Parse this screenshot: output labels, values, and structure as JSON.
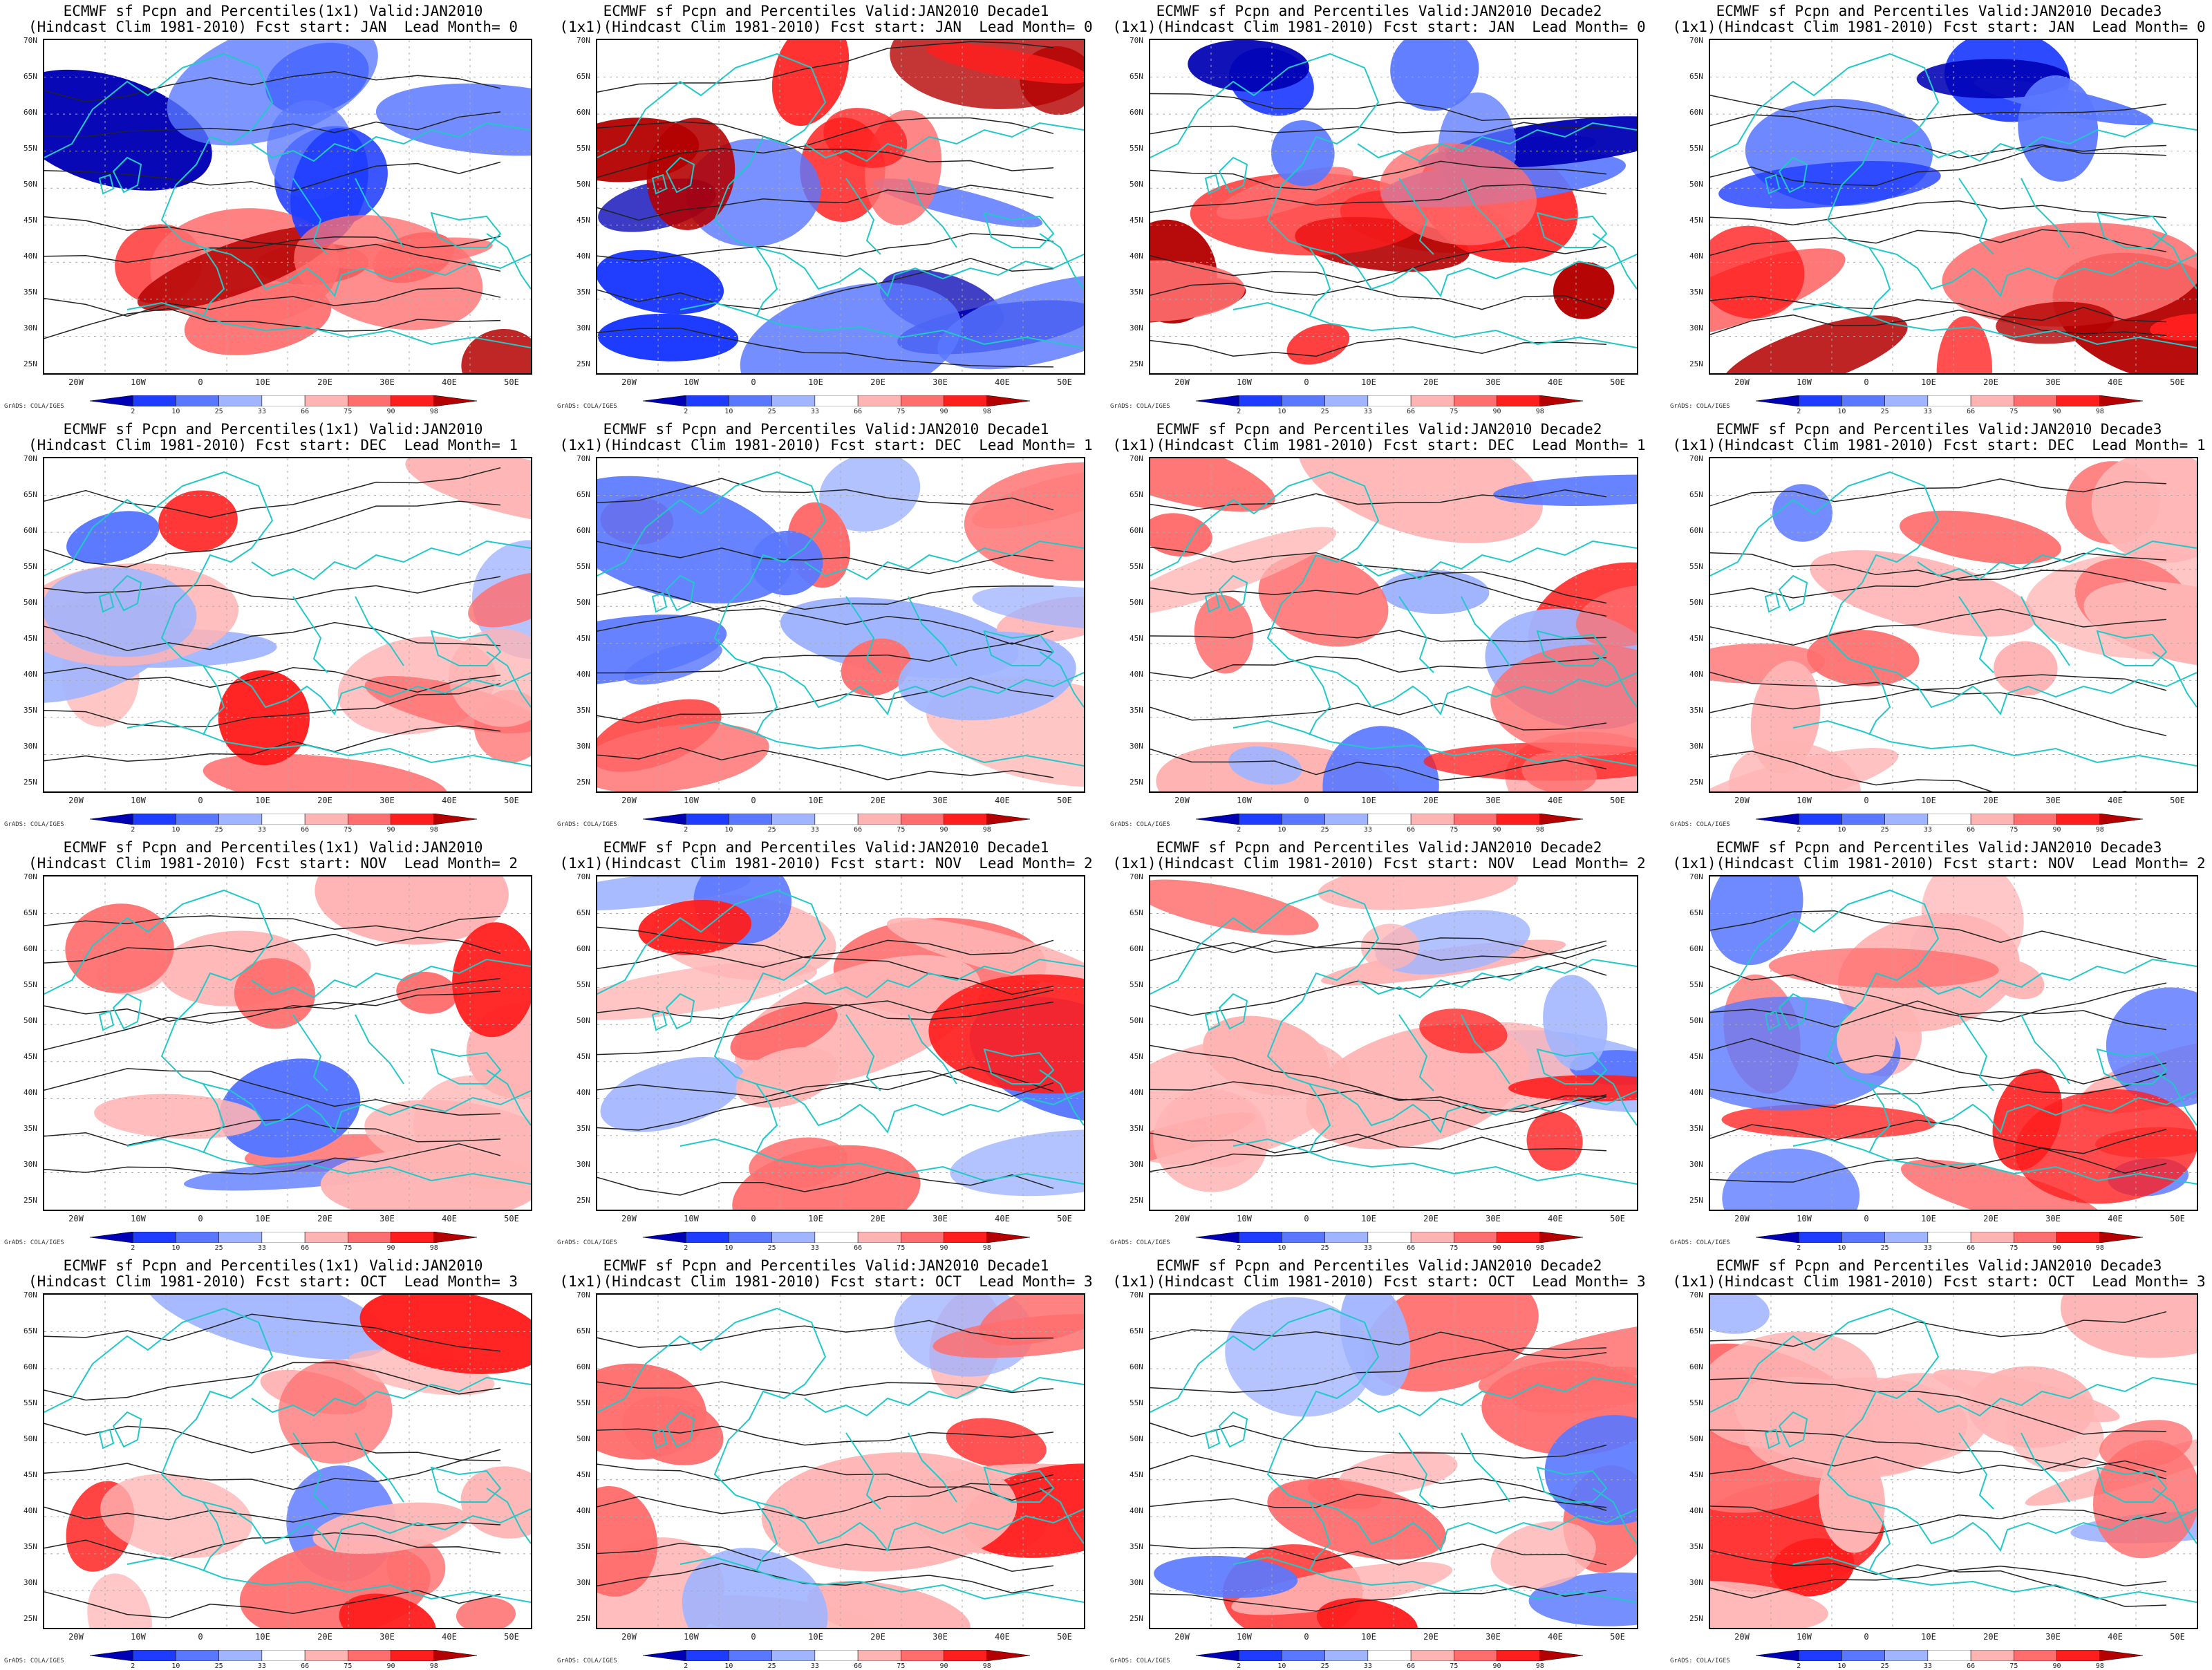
{
  "colorbar": {
    "labels": [
      "2",
      "10",
      "25",
      "33",
      "66",
      "75",
      "90",
      "98"
    ],
    "colors": [
      "#0000b4",
      "#1e3cff",
      "#5a78ff",
      "#a0b4ff",
      "#ffffff",
      "#ffb4b4",
      "#ff6e6e",
      "#ff1e1e",
      "#b40000"
    ]
  },
  "axes": {
    "lat_labels": [
      "70N",
      "65N",
      "60N",
      "55N",
      "50N",
      "45N",
      "40N",
      "35N",
      "30N",
      "25N"
    ],
    "lon_labels": [
      "20W",
      "10W",
      "0",
      "10E",
      "20E",
      "30E",
      "40E",
      "50E"
    ]
  },
  "credit": "GrADS: COLA/IGES",
  "panels": [
    {
      "line1": "ECMWF sf Pcpn and Percentiles(1x1) Valid:JAN2010",
      "line2": "(Hindcast Clim 1981-2010) Fcst start: JAN  Lead Month= 0"
    },
    {
      "line1": "ECMWF sf Pcpn and Percentiles Valid:JAN2010 Decade1",
      "line2": "(1x1)(Hindcast Clim 1981-2010) Fcst start: JAN  Lead Month= 0"
    },
    {
      "line1": "ECMWF sf Pcpn and Percentiles Valid:JAN2010 Decade2",
      "line2": "(1x1)(Hindcast Clim 1981-2010) Fcst start: JAN  Lead Month= 0"
    },
    {
      "line1": "ECMWF sf Pcpn and Percentiles Valid:JAN2010 Decade3",
      "line2": "(1x1)(Hindcast Clim 1981-2010) Fcst start: JAN  Lead Month= 0"
    },
    {
      "line1": "ECMWF sf Pcpn and Percentiles(1x1) Valid:JAN2010",
      "line2": "(Hindcast Clim 1981-2010) Fcst start: DEC  Lead Month= 1"
    },
    {
      "line1": "ECMWF sf Pcpn and Percentiles Valid:JAN2010 Decade1",
      "line2": "(1x1)(Hindcast Clim 1981-2010) Fcst start: DEC  Lead Month= 1"
    },
    {
      "line1": "ECMWF sf Pcpn and Percentiles Valid:JAN2010 Decade2",
      "line2": "(1x1)(Hindcast Clim 1981-2010) Fcst start: DEC  Lead Month= 1"
    },
    {
      "line1": "ECMWF sf Pcpn and Percentiles Valid:JAN2010 Decade3",
      "line2": "(1x1)(Hindcast Clim 1981-2010) Fcst start: DEC  Lead Month= 1"
    },
    {
      "line1": "ECMWF sf Pcpn and Percentiles(1x1) Valid:JAN2010",
      "line2": "(Hindcast Clim 1981-2010) Fcst start: NOV  Lead Month= 2"
    },
    {
      "line1": "ECMWF sf Pcpn and Percentiles Valid:JAN2010 Decade1",
      "line2": "(1x1)(Hindcast Clim 1981-2010) Fcst start: NOV  Lead Month= 2"
    },
    {
      "line1": "ECMWF sf Pcpn and Percentiles Valid:JAN2010 Decade2",
      "line2": "(1x1)(Hindcast Clim 1981-2010) Fcst start: NOV  Lead Month= 2"
    },
    {
      "line1": "ECMWF sf Pcpn and Percentiles Valid:JAN2010 Decade3",
      "line2": "(1x1)(Hindcast Clim 1981-2010) Fcst start: NOV  Lead Month= 2"
    },
    {
      "line1": "ECMWF sf Pcpn and Percentiles(1x1) Valid:JAN2010",
      "line2": "(Hindcast Clim 1981-2010) Fcst start: OCT  Lead Month= 3"
    },
    {
      "line1": "ECMWF sf Pcpn and Percentiles Valid:JAN2010 Decade1",
      "line2": "(1x1)(Hindcast Clim 1981-2010) Fcst start: OCT  Lead Month= 3"
    },
    {
      "line1": "ECMWF sf Pcpn and Percentiles Valid:JAN2010 Decade2",
      "line2": "(1x1)(Hindcast Clim 1981-2010) Fcst start: OCT  Lead Month= 3"
    },
    {
      "line1": "ECMWF sf Pcpn and Percentiles Valid:JAN2010 Decade3",
      "line2": "(1x1)(Hindcast Clim 1981-2010) Fcst start: OCT  Lead Month= 3"
    }
  ]
}
